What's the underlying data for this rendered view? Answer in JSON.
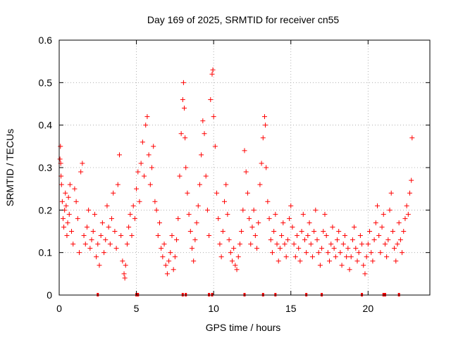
{
  "chart_data": {
    "type": "scatter",
    "title": "Day 169 of 2025, SRMTID for receiver cn55",
    "xlabel": "GPS time / hours",
    "ylabel": "SRMTID / TECUs",
    "xlim": [
      0,
      24
    ],
    "ylim": [
      0,
      0.6
    ],
    "xticks": [
      0,
      5,
      10,
      15,
      20
    ],
    "xtick_labels": [
      "0",
      "5",
      "10",
      "15",
      "20"
    ],
    "yticks": [
      0,
      0.1,
      0.2,
      0.3,
      0.4,
      0.5,
      0.6
    ],
    "ytick_labels": [
      "0",
      "0.1",
      "0.2",
      "0.3",
      "0.4",
      "0.5",
      "0.6"
    ],
    "grid": true,
    "marker": "+",
    "color": "#ff0000",
    "series": [
      {
        "name": "SRMTID",
        "points": [
          [
            0.05,
            0.32
          ],
          [
            0.08,
            0.35
          ],
          [
            0.1,
            0.31
          ],
          [
            0.12,
            0.28
          ],
          [
            0.15,
            0.26
          ],
          [
            0.2,
            0.22
          ],
          [
            0.25,
            0.18
          ],
          [
            0.3,
            0.16
          ],
          [
            0.35,
            0.2
          ],
          [
            0.4,
            0.24
          ],
          [
            0.45,
            0.21
          ],
          [
            0.5,
            0.14
          ],
          [
            0.55,
            0.17
          ],
          [
            0.6,
            0.23
          ],
          [
            0.65,
            0.19
          ],
          [
            0.7,
            0.26
          ],
          [
            0.8,
            0.15
          ],
          [
            0.9,
            0.12
          ],
          [
            1.0,
            0.25
          ],
          [
            1.1,
            0.22
          ],
          [
            1.2,
            0.18
          ],
          [
            1.3,
            0.1
          ],
          [
            1.4,
            0.29
          ],
          [
            1.5,
            0.31
          ],
          [
            1.6,
            0.14
          ],
          [
            1.7,
            0.12
          ],
          [
            1.8,
            0.16
          ],
          [
            1.9,
            0.2
          ],
          [
            2.0,
            0.11
          ],
          [
            2.1,
            0.13
          ],
          [
            2.2,
            0.15
          ],
          [
            2.3,
            0.19
          ],
          [
            2.4,
            0.09
          ],
          [
            2.5,
            0.12
          ],
          [
            2.6,
            0.07
          ],
          [
            2.7,
            0.14
          ],
          [
            2.8,
            0.17
          ],
          [
            2.9,
            0.1
          ],
          [
            3.0,
            0.13
          ],
          [
            3.1,
            0.21
          ],
          [
            3.2,
            0.16
          ],
          [
            3.3,
            0.12
          ],
          [
            3.4,
            0.18
          ],
          [
            3.5,
            0.24
          ],
          [
            3.6,
            0.15
          ],
          [
            3.7,
            0.11
          ],
          [
            3.8,
            0.26
          ],
          [
            3.9,
            0.33
          ],
          [
            4.0,
            0.14
          ],
          [
            4.1,
            0.08
          ],
          [
            4.2,
            0.05
          ],
          [
            4.25,
            0.04
          ],
          [
            4.3,
            0.07
          ],
          [
            4.4,
            0.12
          ],
          [
            4.5,
            0.16
          ],
          [
            4.6,
            0.19
          ],
          [
            4.7,
            0.14
          ],
          [
            4.8,
            0.21
          ],
          [
            4.9,
            0.18
          ],
          [
            5.0,
            0.25
          ],
          [
            5.1,
            0.29
          ],
          [
            5.2,
            0.22
          ],
          [
            5.3,
            0.31
          ],
          [
            5.4,
            0.36
          ],
          [
            5.5,
            0.28
          ],
          [
            5.6,
            0.4
          ],
          [
            5.7,
            0.42
          ],
          [
            5.8,
            0.33
          ],
          [
            5.9,
            0.26
          ],
          [
            6.0,
            0.3
          ],
          [
            6.1,
            0.35
          ],
          [
            6.2,
            0.22
          ],
          [
            6.3,
            0.2
          ],
          [
            6.4,
            0.14
          ],
          [
            6.5,
            0.17
          ],
          [
            6.6,
            0.11
          ],
          [
            6.7,
            0.09
          ],
          [
            6.8,
            0.12
          ],
          [
            6.9,
            0.07
          ],
          [
            7.0,
            0.05
          ],
          [
            7.1,
            0.08
          ],
          [
            7.2,
            0.1
          ],
          [
            7.3,
            0.14
          ],
          [
            7.4,
            0.06
          ],
          [
            7.5,
            0.09
          ],
          [
            7.6,
            0.13
          ],
          [
            7.7,
            0.18
          ],
          [
            7.8,
            0.28
          ],
          [
            7.9,
            0.38
          ],
          [
            8.0,
            0.46
          ],
          [
            8.05,
            0.5
          ],
          [
            8.1,
            0.44
          ],
          [
            8.15,
            0.37
          ],
          [
            8.2,
            0.3
          ],
          [
            8.3,
            0.24
          ],
          [
            8.4,
            0.19
          ],
          [
            8.5,
            0.15
          ],
          [
            8.6,
            0.11
          ],
          [
            8.7,
            0.08
          ],
          [
            8.8,
            0.13
          ],
          [
            8.9,
            0.17
          ],
          [
            9.0,
            0.21
          ],
          [
            9.1,
            0.26
          ],
          [
            9.2,
            0.33
          ],
          [
            9.3,
            0.41
          ],
          [
            9.4,
            0.38
          ],
          [
            9.5,
            0.28
          ],
          [
            9.6,
            0.2
          ],
          [
            9.7,
            0.14
          ],
          [
            9.8,
            0.46
          ],
          [
            9.9,
            0.52
          ],
          [
            9.95,
            0.53
          ],
          [
            10.0,
            0.42
          ],
          [
            10.1,
            0.35
          ],
          [
            10.2,
            0.24
          ],
          [
            10.3,
            0.18
          ],
          [
            10.4,
            0.12
          ],
          [
            10.5,
            0.09
          ],
          [
            10.6,
            0.15
          ],
          [
            10.7,
            0.22
          ],
          [
            10.8,
            0.26
          ],
          [
            10.9,
            0.19
          ],
          [
            11.0,
            0.13
          ],
          [
            11.1,
            0.1
          ],
          [
            11.2,
            0.08
          ],
          [
            11.3,
            0.11
          ],
          [
            11.4,
            0.07
          ],
          [
            11.5,
            0.06
          ],
          [
            11.6,
            0.09
          ],
          [
            11.7,
            0.12
          ],
          [
            11.8,
            0.15
          ],
          [
            11.9,
            0.2
          ],
          [
            12.0,
            0.34
          ],
          [
            12.1,
            0.29
          ],
          [
            12.2,
            0.24
          ],
          [
            12.3,
            0.18
          ],
          [
            12.4,
            0.12
          ],
          [
            12.5,
            0.16
          ],
          [
            12.6,
            0.2
          ],
          [
            12.7,
            0.14
          ],
          [
            12.8,
            0.11
          ],
          [
            12.9,
            0.17
          ],
          [
            13.0,
            0.26
          ],
          [
            13.1,
            0.31
          ],
          [
            13.2,
            0.37
          ],
          [
            13.3,
            0.42
          ],
          [
            13.35,
            0.4
          ],
          [
            13.4,
            0.3
          ],
          [
            13.5,
            0.22
          ],
          [
            13.6,
            0.18
          ],
          [
            13.7,
            0.13
          ],
          [
            13.8,
            0.1
          ],
          [
            13.9,
            0.15
          ],
          [
            14.0,
            0.19
          ],
          [
            14.1,
            0.12
          ],
          [
            14.2,
            0.08
          ],
          [
            14.3,
            0.11
          ],
          [
            14.4,
            0.14
          ],
          [
            14.5,
            0.17
          ],
          [
            14.6,
            0.12
          ],
          [
            14.7,
            0.09
          ],
          [
            14.8,
            0.13
          ],
          [
            14.9,
            0.18
          ],
          [
            15.0,
            0.21
          ],
          [
            15.1,
            0.16
          ],
          [
            15.2,
            0.12
          ],
          [
            15.3,
            0.09
          ],
          [
            15.4,
            0.14
          ],
          [
            15.5,
            0.11
          ],
          [
            15.6,
            0.08
          ],
          [
            15.7,
            0.15
          ],
          [
            15.8,
            0.19
          ],
          [
            15.9,
            0.13
          ],
          [
            16.0,
            0.1
          ],
          [
            16.1,
            0.14
          ],
          [
            16.2,
            0.17
          ],
          [
            16.3,
            0.12
          ],
          [
            16.4,
            0.09
          ],
          [
            16.5,
            0.15
          ],
          [
            16.6,
            0.2
          ],
          [
            16.7,
            0.13
          ],
          [
            16.8,
            0.1
          ],
          [
            16.9,
            0.07
          ],
          [
            17.0,
            0.11
          ],
          [
            17.1,
            0.15
          ],
          [
            17.2,
            0.19
          ],
          [
            17.3,
            0.14
          ],
          [
            17.4,
            0.1
          ],
          [
            17.5,
            0.08
          ],
          [
            17.6,
            0.12
          ],
          [
            17.7,
            0.16
          ],
          [
            17.8,
            0.11
          ],
          [
            17.9,
            0.09
          ],
          [
            18.0,
            0.13
          ],
          [
            18.1,
            0.15
          ],
          [
            18.2,
            0.1
          ],
          [
            18.3,
            0.07
          ],
          [
            18.4,
            0.12
          ],
          [
            18.5,
            0.14
          ],
          [
            18.6,
            0.09
          ],
          [
            18.7,
            0.11
          ],
          [
            18.8,
            0.06
          ],
          [
            18.9,
            0.09
          ],
          [
            19.0,
            0.13
          ],
          [
            19.1,
            0.16
          ],
          [
            19.2,
            0.11
          ],
          [
            19.3,
            0.08
          ],
          [
            19.4,
            0.1
          ],
          [
            19.5,
            0.14
          ],
          [
            19.6,
            0.12
          ],
          [
            19.7,
            0.07
          ],
          [
            19.8,
            0.05
          ],
          [
            19.9,
            0.09
          ],
          [
            20.0,
            0.12
          ],
          [
            20.1,
            0.15
          ],
          [
            20.2,
            0.1
          ],
          [
            20.3,
            0.08
          ],
          [
            20.4,
            0.13
          ],
          [
            20.5,
            0.17
          ],
          [
            20.6,
            0.21
          ],
          [
            20.7,
            0.14
          ],
          [
            20.8,
            0.1
          ],
          [
            20.9,
            0.16
          ],
          [
            21.0,
            0.19
          ],
          [
            21.1,
            0.12
          ],
          [
            21.2,
            0.09
          ],
          [
            21.3,
            0.13
          ],
          [
            21.4,
            0.2
          ],
          [
            21.5,
            0.24
          ],
          [
            21.6,
            0.15
          ],
          [
            21.7,
            0.11
          ],
          [
            21.8,
            0.08
          ],
          [
            21.9,
            0.12
          ],
          [
            22.0,
            0.17
          ],
          [
            22.1,
            0.13
          ],
          [
            22.2,
            0.1
          ],
          [
            22.3,
            0.15
          ],
          [
            22.4,
            0.18
          ],
          [
            22.5,
            0.21
          ],
          [
            22.6,
            0.19
          ],
          [
            22.7,
            0.24
          ],
          [
            22.8,
            0.27
          ],
          [
            22.85,
            0.37
          ]
        ]
      }
    ],
    "baseline_markers_x": [
      2.5,
      5.0,
      5.1,
      8.0,
      8.2,
      9.7,
      9.9,
      12.0,
      13.2,
      14.0,
      16.0,
      17.0,
      19.6,
      21.0,
      21.1,
      22.0
    ]
  }
}
